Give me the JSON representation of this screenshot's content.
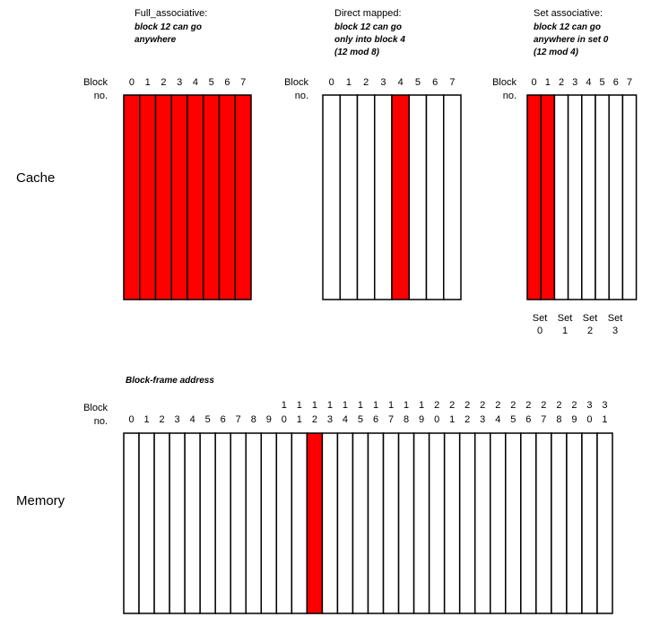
{
  "colors": {
    "highlight": "#ff0000",
    "line": "#000000",
    "background": "#ffffff"
  },
  "panels": {
    "fully": {
      "title_lines": [
        "Full_associative:",
        "block 12 can go",
        "anywhere"
      ],
      "block_label_lines": [
        "Block",
        "no."
      ],
      "block_numbers": [
        "0",
        "1",
        "2",
        "3",
        "4",
        "5",
        "6",
        "7"
      ],
      "highlighted_blocks": [
        0,
        1,
        2,
        3,
        4,
        5,
        6,
        7
      ]
    },
    "direct": {
      "title_lines": [
        "Direct mapped:",
        "block 12 can go",
        "only into block 4",
        "(12 mod 8)"
      ],
      "block_label_lines": [
        "Block",
        "no."
      ],
      "block_numbers": [
        "0",
        "1",
        "2",
        "3",
        "4",
        "5",
        "6",
        "7"
      ],
      "highlighted_blocks": [
        4
      ]
    },
    "set": {
      "title_lines": [
        "Set associative:",
        "block 12 can go",
        "anywhere in set 0",
        "(12 mod 4)"
      ],
      "block_label_lines": [
        "Block",
        "no."
      ],
      "block_numbers": [
        "0",
        "1",
        "2",
        "3",
        "4",
        "5",
        "6",
        "7"
      ],
      "highlighted_blocks": [
        0,
        1
      ],
      "set_labels": [
        {
          "top": "Set",
          "bottom": "0"
        },
        {
          "top": "Set",
          "bottom": "1"
        },
        {
          "top": "Set",
          "bottom": "2"
        },
        {
          "top": "Set",
          "bottom": "3"
        }
      ]
    }
  },
  "cache_label": "Cache",
  "memory": {
    "label": "Memory",
    "frame_address_label": "Block-frame address",
    "block_label_lines": [
      "Block",
      "no."
    ],
    "tens_digits": [
      "",
      "",
      "",
      "",
      "",
      "",
      "",
      "",
      "",
      "",
      "1",
      "1",
      "1",
      "1",
      "1",
      "1",
      "1",
      "1",
      "1",
      "1",
      "2",
      "2",
      "2",
      "2",
      "2",
      "2",
      "2",
      "2",
      "2",
      "2",
      "3",
      "3"
    ],
    "ones_digits": [
      "0",
      "1",
      "2",
      "3",
      "4",
      "5",
      "6",
      "7",
      "8",
      "9",
      "0",
      "1",
      "2",
      "3",
      "4",
      "5",
      "6",
      "7",
      "8",
      "9",
      "0",
      "1",
      "2",
      "3",
      "4",
      "5",
      "6",
      "7",
      "8",
      "9",
      "0",
      "1"
    ],
    "highlighted_blocks": [
      12
    ]
  }
}
